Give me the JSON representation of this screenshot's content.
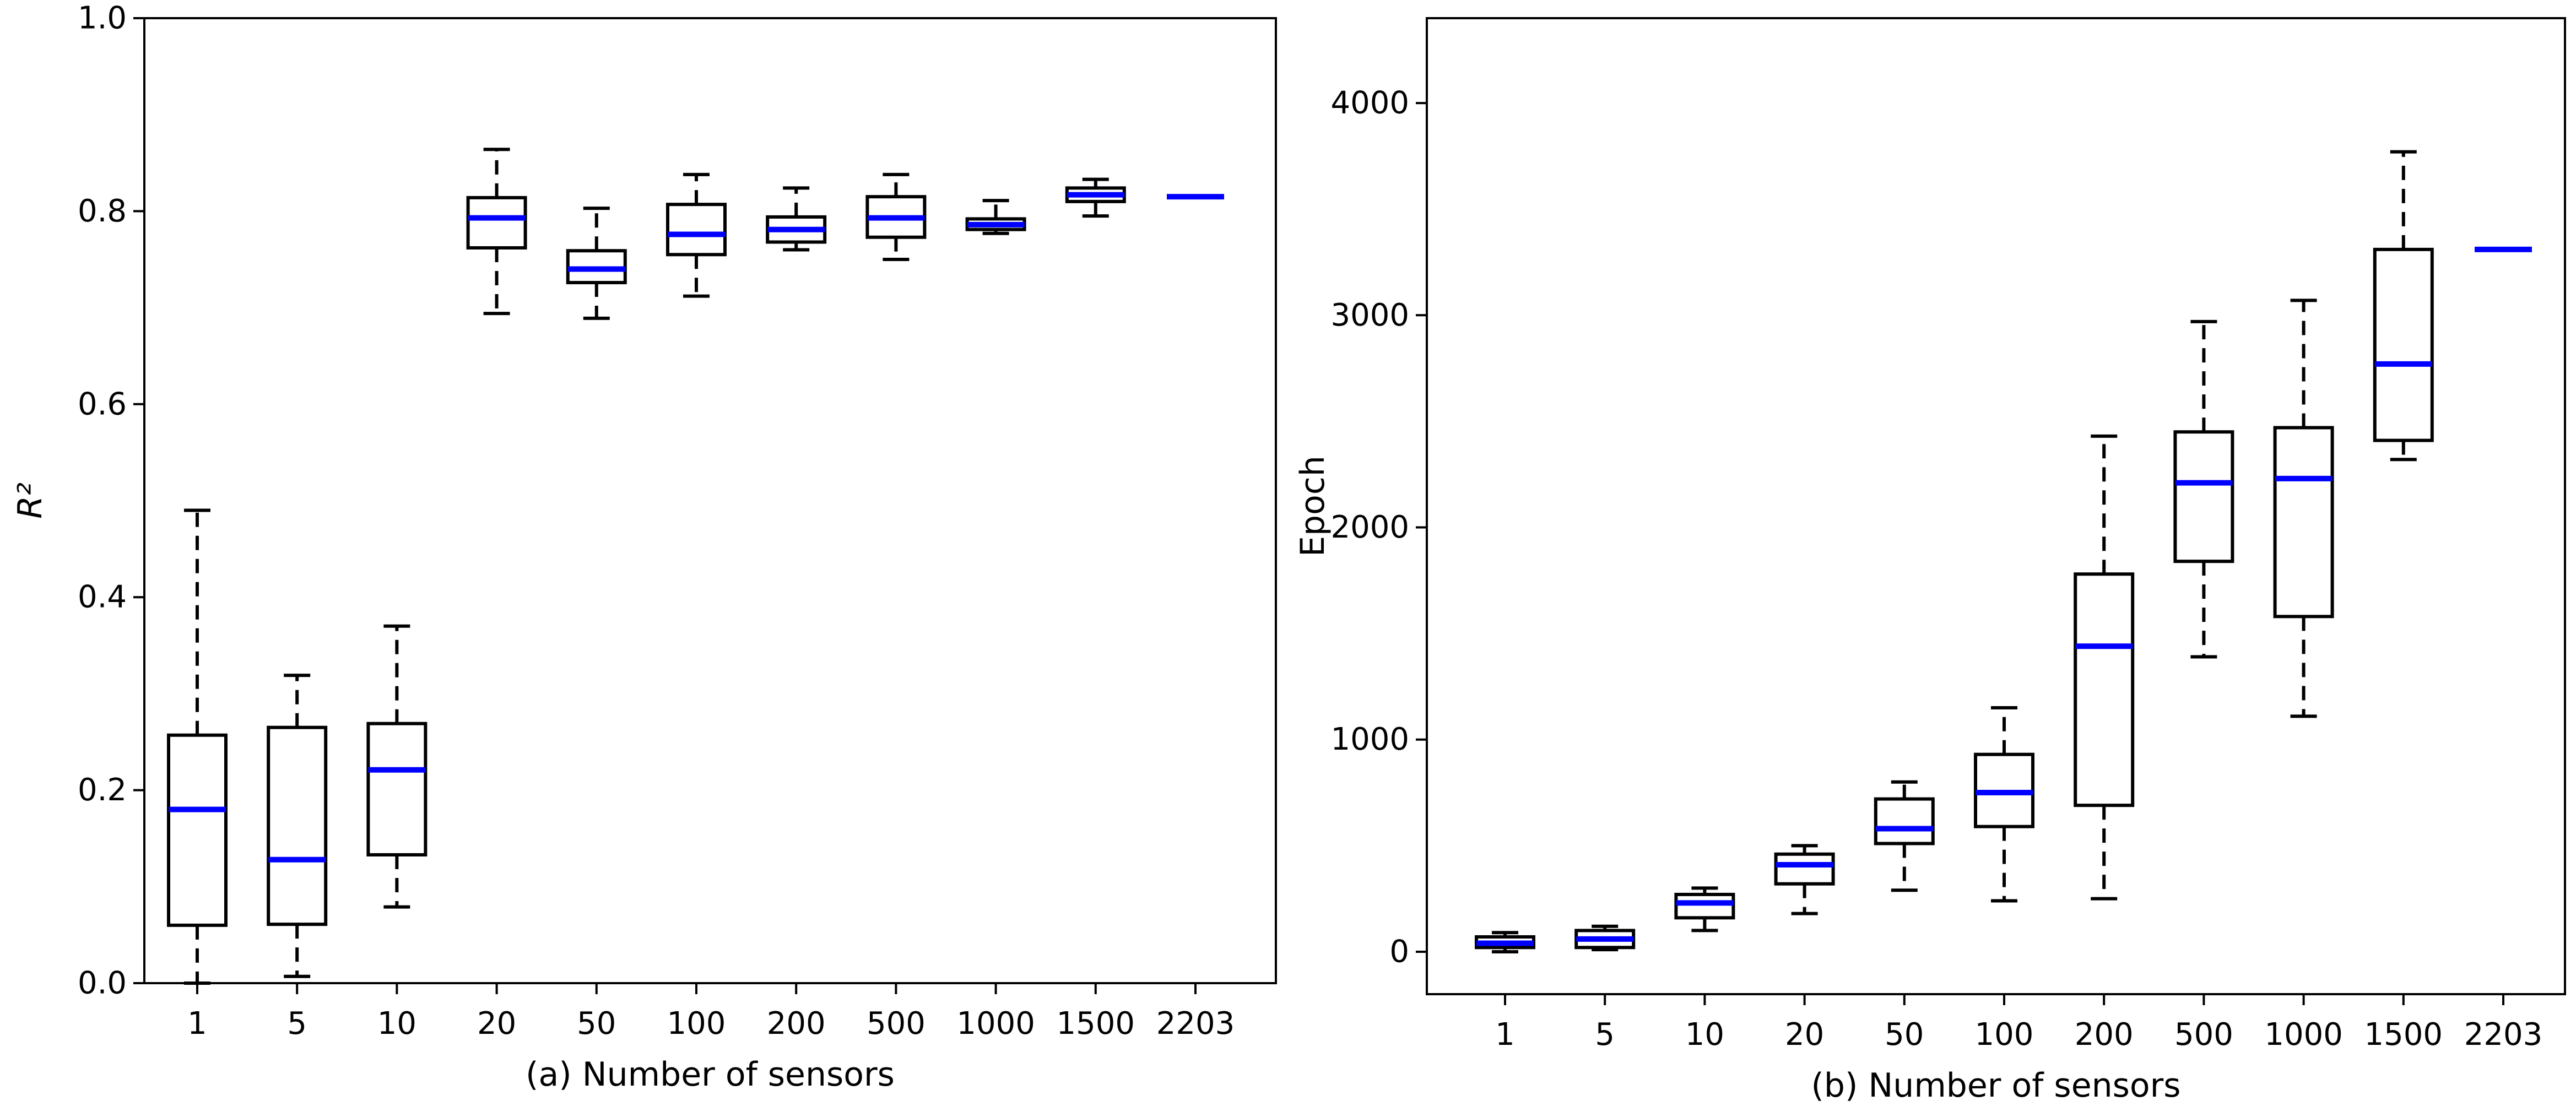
{
  "chart_data": [
    {
      "type": "box",
      "panel": "a",
      "xlabel": "(a) Number of sensors",
      "ylabel": "R²",
      "ylim": [
        0.0,
        1.0
      ],
      "yticks": [
        "0.0",
        "0.2",
        "0.4",
        "0.6",
        "0.8",
        "1.0"
      ],
      "categories": [
        "1",
        "5",
        "10",
        "20",
        "50",
        "100",
        "200",
        "500",
        "1000",
        "1500",
        "2203"
      ],
      "median_color": "#0000ff",
      "boxes": [
        {
          "whislo": 0.0,
          "q1": 0.06,
          "med": 0.18,
          "q3": 0.257,
          "whishi": 0.49
        },
        {
          "whislo": 0.007,
          "q1": 0.061,
          "med": 0.128,
          "q3": 0.265,
          "whishi": 0.319
        },
        {
          "whislo": 0.079,
          "q1": 0.133,
          "med": 0.221,
          "q3": 0.269,
          "whishi": 0.37
        },
        {
          "whislo": 0.694,
          "q1": 0.762,
          "med": 0.793,
          "q3": 0.814,
          "whishi": 0.864
        },
        {
          "whislo": 0.689,
          "q1": 0.726,
          "med": 0.74,
          "q3": 0.759,
          "whishi": 0.803
        },
        {
          "whislo": 0.712,
          "q1": 0.755,
          "med": 0.776,
          "q3": 0.807,
          "whishi": 0.838
        },
        {
          "whislo": 0.76,
          "q1": 0.768,
          "med": 0.781,
          "q3": 0.794,
          "whishi": 0.824
        },
        {
          "whislo": 0.75,
          "q1": 0.773,
          "med": 0.793,
          "q3": 0.815,
          "whishi": 0.838
        },
        {
          "whislo": 0.777,
          "q1": 0.781,
          "med": 0.786,
          "q3": 0.792,
          "whishi": 0.811
        },
        {
          "whislo": 0.795,
          "q1": 0.81,
          "med": 0.817,
          "q3": 0.824,
          "whishi": 0.833
        },
        {
          "whislo": 0.815,
          "q1": 0.815,
          "med": 0.815,
          "q3": 0.815,
          "whishi": 0.815
        }
      ]
    },
    {
      "type": "box",
      "panel": "b",
      "xlabel": "(b) Number of sensors",
      "ylabel": "Epoch",
      "ylim": [
        -200,
        4400
      ],
      "yticks": [
        "0",
        "1000",
        "2000",
        "3000",
        "4000"
      ],
      "categories": [
        "1",
        "5",
        "10",
        "20",
        "50",
        "100",
        "200",
        "500",
        "1000",
        "1500",
        "2203"
      ],
      "median_color": "#0000ff",
      "boxes": [
        {
          "whislo": 0,
          "q1": 20,
          "med": 40,
          "q3": 70,
          "whishi": 90
        },
        {
          "whislo": 10,
          "q1": 20,
          "med": 60,
          "q3": 100,
          "whishi": 120
        },
        {
          "whislo": 100,
          "q1": 160,
          "med": 230,
          "q3": 270,
          "whishi": 300
        },
        {
          "whislo": 180,
          "q1": 320,
          "med": 410,
          "q3": 460,
          "whishi": 500
        },
        {
          "whislo": 290,
          "q1": 510,
          "med": 580,
          "q3": 720,
          "whishi": 800
        },
        {
          "whislo": 240,
          "q1": 590,
          "med": 750,
          "q3": 930,
          "whishi": 1150
        },
        {
          "whislo": 250,
          "q1": 690,
          "med": 1440,
          "q3": 1780,
          "whishi": 2430
        },
        {
          "whislo": 1390,
          "q1": 1840,
          "med": 2210,
          "q3": 2450,
          "whishi": 2970
        },
        {
          "whislo": 1110,
          "q1": 1580,
          "med": 2230,
          "q3": 2470,
          "whishi": 3070
        },
        {
          "whislo": 2320,
          "q1": 2410,
          "med": 2770,
          "q3": 3310,
          "whishi": 3770
        },
        {
          "whislo": 3310,
          "q1": 3310,
          "med": 3310,
          "q3": 3310,
          "whishi": 3310
        }
      ]
    }
  ]
}
